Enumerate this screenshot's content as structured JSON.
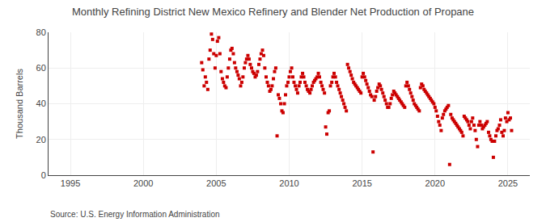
{
  "chart_data": {
    "type": "scatter",
    "title": "Monthly Refining District New Mexico Refinery and Blender Net Production of Propane",
    "ylabel": "Thousand Barrels",
    "annotations": [
      "Source: U.S. Energy Information Administration"
    ],
    "color": "#cc0000",
    "marker": "square",
    "grid": true,
    "xlim": [
      1993.5,
      2026.5
    ],
    "ylim": [
      0,
      80
    ],
    "xticks": [
      1995,
      2000,
      2005,
      2010,
      2015,
      2020,
      2025
    ],
    "yticks": [
      0,
      20,
      40,
      60,
      80
    ],
    "x": [
      2004.0,
      2004.08,
      2004.17,
      2004.25,
      2004.33,
      2004.42,
      2004.5,
      2004.58,
      2004.67,
      2004.75,
      2004.83,
      2004.92,
      2005.0,
      2005.08,
      2005.17,
      2005.25,
      2005.33,
      2005.42,
      2005.5,
      2005.58,
      2005.67,
      2005.75,
      2005.83,
      2005.92,
      2006.0,
      2006.08,
      2006.17,
      2006.25,
      2006.33,
      2006.42,
      2006.5,
      2006.58,
      2006.67,
      2006.75,
      2006.83,
      2006.92,
      2007.0,
      2007.08,
      2007.17,
      2007.25,
      2007.33,
      2007.42,
      2007.5,
      2007.58,
      2007.67,
      2007.75,
      2007.83,
      2007.92,
      2008.0,
      2008.08,
      2008.17,
      2008.25,
      2008.33,
      2008.42,
      2008.5,
      2008.58,
      2008.67,
      2008.75,
      2008.83,
      2008.92,
      2009.0,
      2009.08,
      2009.17,
      2009.25,
      2009.33,
      2009.42,
      2009.5,
      2009.58,
      2009.67,
      2009.75,
      2009.83,
      2009.92,
      2010.0,
      2010.08,
      2010.17,
      2010.25,
      2010.33,
      2010.42,
      2010.5,
      2010.58,
      2010.67,
      2010.75,
      2010.83,
      2010.92,
      2011.0,
      2011.08,
      2011.17,
      2011.25,
      2011.33,
      2011.42,
      2011.5,
      2011.58,
      2011.67,
      2011.75,
      2011.83,
      2011.92,
      2012.0,
      2012.08,
      2012.17,
      2012.25,
      2012.33,
      2012.42,
      2012.5,
      2012.58,
      2012.67,
      2012.75,
      2012.83,
      2012.92,
      2013.0,
      2013.08,
      2013.17,
      2013.25,
      2013.33,
      2013.42,
      2013.5,
      2013.58,
      2013.67,
      2013.75,
      2013.83,
      2013.92,
      2014.0,
      2014.08,
      2014.17,
      2014.25,
      2014.33,
      2014.42,
      2014.5,
      2014.58,
      2014.67,
      2014.75,
      2014.83,
      2014.92,
      2015.0,
      2015.08,
      2015.17,
      2015.25,
      2015.33,
      2015.42,
      2015.5,
      2015.58,
      2015.67,
      2015.75,
      2015.83,
      2015.92,
      2016.0,
      2016.08,
      2016.17,
      2016.25,
      2016.33,
      2016.42,
      2016.5,
      2016.58,
      2016.67,
      2016.75,
      2016.83,
      2016.92,
      2017.0,
      2017.08,
      2017.17,
      2017.25,
      2017.33,
      2017.42,
      2017.5,
      2017.58,
      2017.67,
      2017.75,
      2017.83,
      2017.92,
      2018.0,
      2018.08,
      2018.17,
      2018.25,
      2018.33,
      2018.42,
      2018.5,
      2018.58,
      2018.67,
      2018.75,
      2018.83,
      2018.92,
      2019.0,
      2019.08,
      2019.17,
      2019.25,
      2019.33,
      2019.42,
      2019.5,
      2019.58,
      2019.67,
      2019.75,
      2019.83,
      2019.92,
      2020.0,
      2020.08,
      2020.17,
      2020.25,
      2020.33,
      2020.42,
      2020.5,
      2020.58,
      2020.67,
      2020.75,
      2020.83,
      2020.92,
      2021.0,
      2021.08,
      2021.17,
      2021.25,
      2021.33,
      2021.42,
      2021.5,
      2021.58,
      2021.67,
      2021.75,
      2021.83,
      2021.92,
      2022.0,
      2022.08,
      2022.17,
      2022.25,
      2022.33,
      2022.42,
      2022.5,
      2022.58,
      2022.67,
      2022.75,
      2022.83,
      2022.92,
      2023.0,
      2023.08,
      2023.17,
      2023.25,
      2023.33,
      2023.42,
      2023.5,
      2023.58,
      2023.67,
      2023.75,
      2023.83,
      2023.92,
      2024.0,
      2024.08,
      2024.17,
      2024.25,
      2024.33,
      2024.42,
      2024.5,
      2024.58,
      2024.67,
      2024.75,
      2024.83,
      2024.92,
      2025.0,
      2025.08,
      2025.17,
      2025.25
    ],
    "values": [
      63,
      59,
      50,
      55,
      52,
      48,
      65,
      70,
      79,
      76,
      68,
      60,
      67,
      75,
      77,
      68,
      58,
      54,
      52,
      50,
      49,
      55,
      60,
      65,
      70,
      71,
      68,
      63,
      60,
      58,
      56,
      54,
      50,
      52,
      55,
      60,
      63,
      65,
      67,
      65,
      62,
      60,
      58,
      57,
      55,
      56,
      58,
      62,
      65,
      68,
      70,
      67,
      60,
      55,
      52,
      50,
      47,
      48,
      50,
      54,
      58,
      60,
      22,
      45,
      43,
      40,
      36,
      35,
      40,
      45,
      50,
      52,
      55,
      58,
      60,
      55,
      52,
      50,
      48,
      46,
      50,
      52,
      55,
      57,
      55,
      52,
      50,
      48,
      47,
      46,
      48,
      50,
      52,
      53,
      54,
      55,
      57,
      55,
      52,
      50,
      48,
      46,
      27,
      23,
      35,
      36,
      50,
      52,
      55,
      57,
      55,
      52,
      50,
      48,
      46,
      44,
      42,
      40,
      38,
      36,
      62,
      60,
      58,
      56,
      54,
      52,
      51,
      50,
      49,
      48,
      47,
      46,
      55,
      57,
      55,
      53,
      51,
      49,
      47,
      45,
      44,
      13,
      42,
      44,
      47,
      49,
      51,
      50,
      48,
      46,
      44,
      42,
      40,
      38,
      38,
      40,
      43,
      45,
      47,
      46,
      45,
      44,
      43,
      42,
      41,
      40,
      39,
      38,
      50,
      52,
      50,
      48,
      46,
      44,
      42,
      40,
      39,
      38,
      37,
      36,
      49,
      51,
      50,
      48,
      47,
      46,
      45,
      44,
      43,
      42,
      41,
      40,
      38,
      36,
      33,
      30,
      28,
      25,
      32,
      34,
      36,
      37,
      38,
      39,
      6,
      34,
      32,
      31,
      30,
      29,
      28,
      27,
      26,
      25,
      24,
      22,
      33,
      32,
      31,
      30,
      28,
      26,
      30,
      32,
      28,
      25,
      20,
      16,
      28,
      30,
      28,
      26,
      27,
      28,
      29,
      30,
      24,
      22,
      20,
      19,
      10,
      19,
      22,
      25,
      26,
      28,
      31,
      24,
      22,
      25,
      32,
      30,
      35,
      31,
      32,
      25
    ]
  }
}
